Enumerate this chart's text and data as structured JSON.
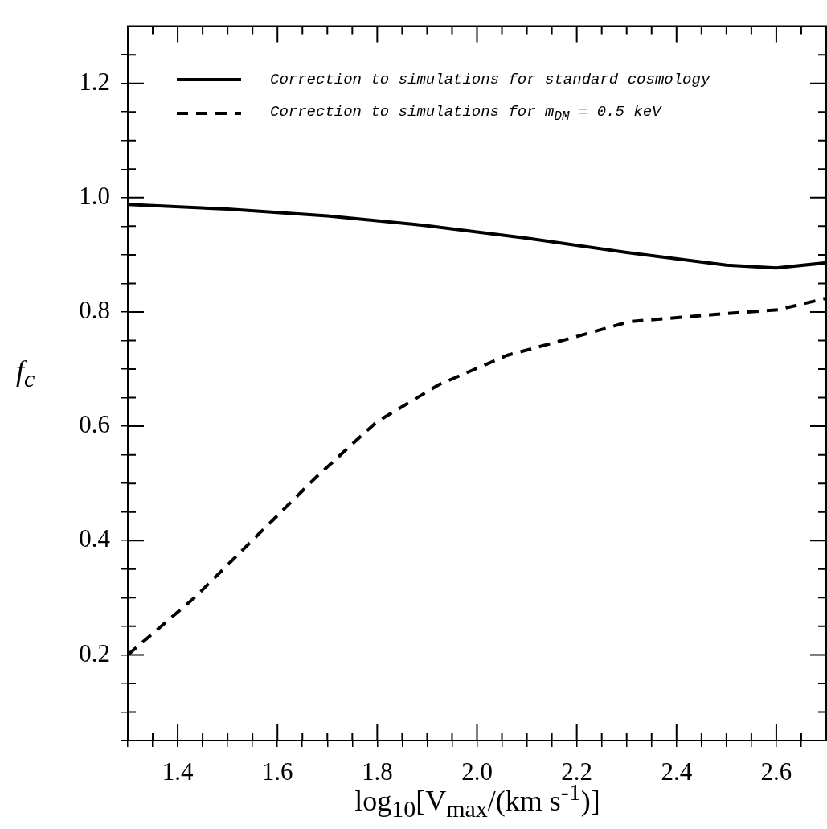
{
  "chart_data": {
    "type": "line",
    "xlabel": "log$_{10}$[V$_{max}$/(km s$^{-1}$)]",
    "ylabel": "f$_{c}$",
    "legend": "top left",
    "line_style": "solid",
    "marker": "none",
    "grid": false,
    "xlim": [
      1.3,
      2.7
    ],
    "ylim": [
      0.05,
      1.3
    ],
    "xticks": [
      {
        "value": 1.3,
        "label": null
      },
      {
        "value": 1.35,
        "label": null
      },
      1.4,
      {
        "value": 1.45,
        "label": null
      },
      {
        "value": 1.5,
        "label": null
      },
      {
        "value": 1.55,
        "label": null
      },
      1.6,
      {
        "value": 1.65,
        "label": null
      },
      {
        "value": 1.7,
        "label": null
      },
      {
        "value": 1.75,
        "label": null
      },
      1.8,
      {
        "value": 1.85,
        "label": null
      },
      {
        "value": 1.9,
        "label": null
      },
      {
        "value": 1.95,
        "label": null
      },
      {
        "value": 2.0,
        "label": "2.0"
      },
      {
        "value": 2.05,
        "label": null
      },
      {
        "value": 2.1,
        "label": null
      },
      {
        "value": 2.15,
        "label": null
      },
      2.2,
      {
        "value": 2.25,
        "label": null
      },
      {
        "value": 2.3,
        "label": null
      },
      {
        "value": 2.35,
        "label": null
      },
      2.4,
      {
        "value": 2.45,
        "label": null
      },
      {
        "value": 2.5,
        "label": null
      },
      {
        "value": 2.55,
        "label": null
      },
      2.6,
      {
        "value": 2.65,
        "label": null
      }
    ],
    "yticks": [
      {
        "value": 0.05,
        "label": null
      },
      {
        "value": 0.1,
        "label": null
      },
      {
        "value": 0.15,
        "label": null
      },
      0.2,
      {
        "value": 0.25,
        "label": null
      },
      {
        "value": 0.3,
        "label": null
      },
      {
        "value": 0.35,
        "label": null
      },
      0.4,
      {
        "value": 0.45,
        "label": null
      },
      {
        "value": 0.5,
        "label": null
      },
      {
        "value": 0.55,
        "label": null
      },
      0.6,
      {
        "value": 0.65,
        "label": null
      },
      {
        "value": 0.7,
        "label": null
      },
      {
        "value": 0.75,
        "label": null
      },
      0.8,
      {
        "value": 0.85,
        "label": null
      },
      {
        "value": 0.9,
        "label": null
      },
      {
        "value": 0.95,
        "label": null
      },
      {
        "value": 1.0,
        "label": "1.0"
      },
      {
        "value": 1.05,
        "label": null
      },
      {
        "value": 1.1,
        "label": null
      },
      {
        "value": 1.15,
        "label": null
      },
      1.2,
      {
        "value": 1.25,
        "label": null
      }
    ],
    "series": [
      {
        "name": "Correction to simulations for standard cosmology",
        "color": "#000000",
        "x": [
          1.3,
          1.5,
          1.7,
          1.9,
          2.1,
          2.3,
          2.5,
          2.6,
          2.7
        ],
        "values": [
          0.988,
          0.98,
          0.968,
          0.951,
          0.929,
          0.904,
          0.882,
          0.877,
          0.886
        ]
      },
      {
        "name": "Correction to simulations for m$_{DM}$ = 0.5 keV",
        "color": "#000000",
        "line_style": "dashed",
        "x": [
          1.3,
          1.435,
          1.562,
          1.68,
          1.798,
          1.924,
          2.06,
          2.196,
          2.305,
          2.468,
          2.604,
          2.7
        ],
        "values": [
          0.2,
          0.301,
          0.411,
          0.513,
          0.607,
          0.673,
          0.724,
          0.756,
          0.783,
          0.795,
          0.804,
          0.824
        ]
      }
    ]
  }
}
